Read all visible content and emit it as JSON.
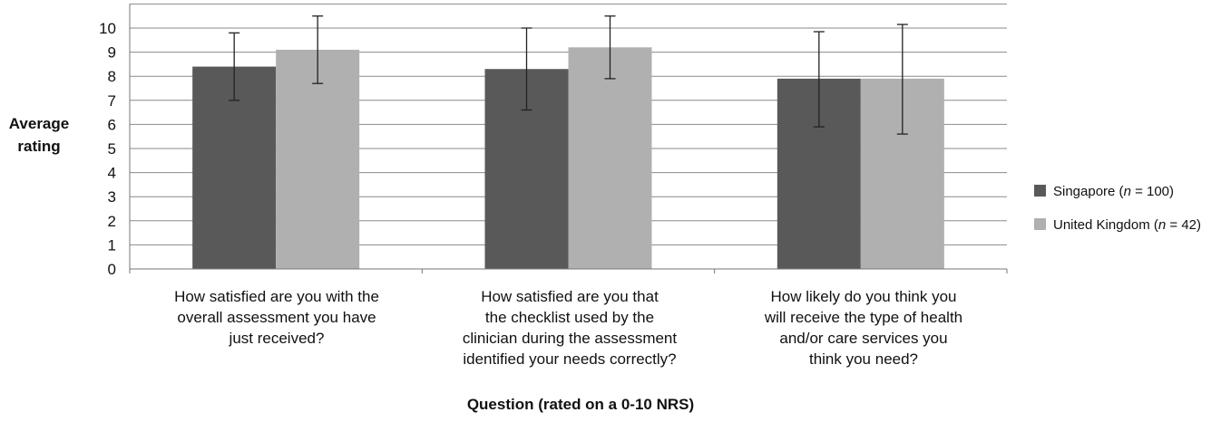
{
  "chart_data": {
    "type": "bar",
    "title": "",
    "xlabel": "Question (rated on a 0-10 NRS)",
    "ylabel": "Average rating",
    "ylim": [
      0,
      11
    ],
    "yticks": [
      0,
      1,
      2,
      3,
      4,
      5,
      6,
      7,
      8,
      9,
      10
    ],
    "grid": true,
    "legend_position": "right",
    "categories": [
      "How satisfied are you with the overall assessment you have just received?",
      "How satisfied are you that the checklist used by the clinician during the assessment identified your needs correctly?",
      "How likely do you think you will receive the type of health and/or care services you think you need?"
    ],
    "series": [
      {
        "name": "Singapore (n = 100)",
        "name_parts": {
          "before": "Singapore (",
          "n": "n",
          "after": " = 100)"
        },
        "color": "#595959",
        "values": [
          8.4,
          8.3,
          7.9
        ],
        "error_low": [
          7.0,
          6.6,
          5.9
        ],
        "error_high": [
          9.8,
          10.0,
          9.85
        ]
      },
      {
        "name": "United Kingdom (n = 42)",
        "name_parts": {
          "before": "United Kingdom (",
          "n": "n",
          "after": " = 42)"
        },
        "color": "#b0b0b0",
        "values": [
          9.1,
          9.2,
          7.9
        ],
        "error_low": [
          7.7,
          7.9,
          5.6
        ],
        "error_high": [
          10.5,
          10.5,
          10.15
        ]
      }
    ]
  },
  "category_lines": [
    [
      "How satisfied are you with the",
      "overall assessment you have",
      "just received?"
    ],
    [
      "How satisfied are you that",
      "the checklist used by the",
      "clinician during the assessment",
      "identified your needs correctly?"
    ],
    [
      "How likely do you think you",
      "will receive the type of health",
      "and/or care services you",
      "think you need?"
    ]
  ],
  "ylabel_lines": [
    "Average",
    "rating"
  ]
}
